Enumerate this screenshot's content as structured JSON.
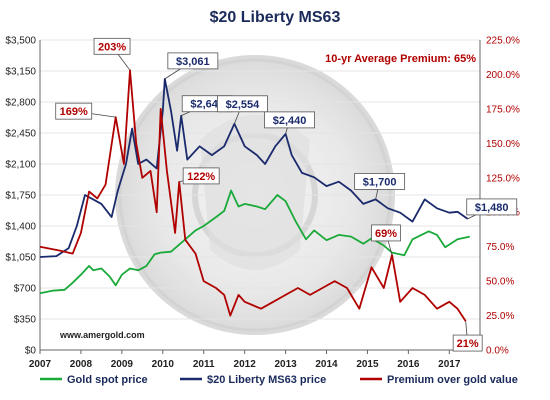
{
  "chart_data": {
    "type": "line",
    "title": "$20 Liberty MS63",
    "average_note": "10-yr Average Premium:  65%",
    "source": "www.amergold.com",
    "x_ticks": [
      "2007",
      "2008",
      "2009",
      "2010",
      "2011",
      "2012",
      "2013",
      "2014",
      "2015",
      "2016",
      "2017"
    ],
    "xlim": [
      2007,
      2017.75
    ],
    "y_left": {
      "ticks": [
        "$0",
        "$350",
        "$700",
        "$1,050",
        "$1,400",
        "$1,750",
        "$2,100",
        "$2,450",
        "$2,800",
        "$3,150",
        "$3,500"
      ],
      "ylim": [
        0,
        3500
      ]
    },
    "y_right": {
      "ticks": [
        "0.0%",
        "25.0%",
        "50.0%",
        "75.0%",
        "100.0%",
        "125.0%",
        "150.0%",
        "175.0%",
        "200.0%",
        "225.0%"
      ],
      "ylim": [
        0,
        225
      ]
    },
    "grid": "horizontal",
    "legend_placement": "bottom",
    "series": [
      {
        "name": "Gold spot price",
        "axis": "left",
        "color": "#1aaa3a",
        "points": [
          [
            2007.0,
            640
          ],
          [
            2007.3,
            670
          ],
          [
            2007.6,
            680
          ],
          [
            2007.8,
            760
          ],
          [
            2008.0,
            850
          ],
          [
            2008.2,
            950
          ],
          [
            2008.3,
            900
          ],
          [
            2008.5,
            920
          ],
          [
            2008.7,
            830
          ],
          [
            2008.85,
            730
          ],
          [
            2009.0,
            850
          ],
          [
            2009.2,
            920
          ],
          [
            2009.4,
            900
          ],
          [
            2009.6,
            950
          ],
          [
            2009.8,
            1080
          ],
          [
            2009.95,
            1100
          ],
          [
            2010.2,
            1110
          ],
          [
            2010.5,
            1230
          ],
          [
            2010.8,
            1350
          ],
          [
            2011.0,
            1400
          ],
          [
            2011.3,
            1500
          ],
          [
            2011.5,
            1570
          ],
          [
            2011.67,
            1800
          ],
          [
            2011.85,
            1620
          ],
          [
            2012.0,
            1650
          ],
          [
            2012.3,
            1620
          ],
          [
            2012.5,
            1590
          ],
          [
            2012.8,
            1750
          ],
          [
            2013.0,
            1680
          ],
          [
            2013.25,
            1450
          ],
          [
            2013.5,
            1250
          ],
          [
            2013.7,
            1350
          ],
          [
            2014.0,
            1240
          ],
          [
            2014.3,
            1300
          ],
          [
            2014.6,
            1280
          ],
          [
            2014.9,
            1200
          ],
          [
            2015.1,
            1260
          ],
          [
            2015.4,
            1180
          ],
          [
            2015.6,
            1100
          ],
          [
            2015.9,
            1070
          ],
          [
            2016.1,
            1250
          ],
          [
            2016.5,
            1340
          ],
          [
            2016.7,
            1300
          ],
          [
            2016.9,
            1160
          ],
          [
            2017.2,
            1250
          ],
          [
            2017.5,
            1280
          ]
        ]
      },
      {
        "name": "$20 Liberty MS63 price",
        "axis": "left",
        "color": "#1a2a6c",
        "points": [
          [
            2007.0,
            1050
          ],
          [
            2007.4,
            1060
          ],
          [
            2007.7,
            1150
          ],
          [
            2007.9,
            1400
          ],
          [
            2008.1,
            1750
          ],
          [
            2008.3,
            1700
          ],
          [
            2008.5,
            1650
          ],
          [
            2008.75,
            1500
          ],
          [
            2008.9,
            1800
          ],
          [
            2009.1,
            2100
          ],
          [
            2009.25,
            2500
          ],
          [
            2009.4,
            2100
          ],
          [
            2009.6,
            2150
          ],
          [
            2009.85,
            2050
          ],
          [
            2010.0,
            2700
          ],
          [
            2010.05,
            3061
          ],
          [
            2010.2,
            2700
          ],
          [
            2010.35,
            2250
          ],
          [
            2010.45,
            2645
          ],
          [
            2010.6,
            2150
          ],
          [
            2010.9,
            2300
          ],
          [
            2011.2,
            2200
          ],
          [
            2011.5,
            2300
          ],
          [
            2011.75,
            2554
          ],
          [
            2012.0,
            2300
          ],
          [
            2012.3,
            2200
          ],
          [
            2012.5,
            2100
          ],
          [
            2012.75,
            2300
          ],
          [
            2013.0,
            2440
          ],
          [
            2013.15,
            2200
          ],
          [
            2013.4,
            2000
          ],
          [
            2013.7,
            1950
          ],
          [
            2014.0,
            1850
          ],
          [
            2014.3,
            1900
          ],
          [
            2014.6,
            1800
          ],
          [
            2014.9,
            1650
          ],
          [
            2015.2,
            1700
          ],
          [
            2015.5,
            1600
          ],
          [
            2015.8,
            1550
          ],
          [
            2016.1,
            1450
          ],
          [
            2016.4,
            1700
          ],
          [
            2016.7,
            1600
          ],
          [
            2017.0,
            1550
          ],
          [
            2017.2,
            1560
          ],
          [
            2017.45,
            1480
          ]
        ]
      },
      {
        "name": "Premium over gold value",
        "axis": "right",
        "color": "#b00000",
        "points": [
          [
            2007.0,
            75
          ],
          [
            2007.5,
            72
          ],
          [
            2007.8,
            70
          ],
          [
            2008.0,
            85
          ],
          [
            2008.2,
            115
          ],
          [
            2008.4,
            110
          ],
          [
            2008.6,
            120
          ],
          [
            2008.85,
            169
          ],
          [
            2009.05,
            135
          ],
          [
            2009.2,
            203
          ],
          [
            2009.35,
            150
          ],
          [
            2009.5,
            125
          ],
          [
            2009.7,
            130
          ],
          [
            2009.85,
            100
          ],
          [
            2009.95,
            175
          ],
          [
            2010.1,
            130
          ],
          [
            2010.3,
            85
          ],
          [
            2010.4,
            122
          ],
          [
            2010.55,
            80
          ],
          [
            2010.8,
            70
          ],
          [
            2011.0,
            50
          ],
          [
            2011.3,
            45
          ],
          [
            2011.5,
            40
          ],
          [
            2011.65,
            25
          ],
          [
            2011.85,
            40
          ],
          [
            2012.0,
            35
          ],
          [
            2012.4,
            30
          ],
          [
            2012.7,
            35
          ],
          [
            2013.0,
            40
          ],
          [
            2013.3,
            45
          ],
          [
            2013.6,
            40
          ],
          [
            2013.9,
            45
          ],
          [
            2014.2,
            50
          ],
          [
            2014.5,
            45
          ],
          [
            2014.8,
            30
          ],
          [
            2015.1,
            60
          ],
          [
            2015.4,
            45
          ],
          [
            2015.6,
            69
          ],
          [
            2015.8,
            35
          ],
          [
            2016.1,
            45
          ],
          [
            2016.4,
            40
          ],
          [
            2016.7,
            30
          ],
          [
            2017.0,
            35
          ],
          [
            2017.2,
            30
          ],
          [
            2017.4,
            21
          ]
        ]
      }
    ],
    "annotations": [
      {
        "text": "203%",
        "series": 2,
        "x": 2009.2,
        "y": 203,
        "color": "#b00000"
      },
      {
        "text": "169%",
        "series": 2,
        "x": 2008.85,
        "y": 169,
        "color": "#b00000"
      },
      {
        "text": "122%",
        "series": 2,
        "x": 2010.4,
        "y": 122,
        "color": "#b00000"
      },
      {
        "text": "69%",
        "series": 2,
        "x": 2015.6,
        "y": 69,
        "color": "#b00000"
      },
      {
        "text": "21%",
        "series": 2,
        "x": 2017.4,
        "y": 21,
        "color": "#b00000"
      },
      {
        "text": "$3,061",
        "series": 1,
        "x": 2010.05,
        "y": 3061,
        "color": "#1a2a6c"
      },
      {
        "text": "$2,645",
        "series": 1,
        "x": 2010.45,
        "y": 2645,
        "color": "#1a2a6c"
      },
      {
        "text": "$2,554",
        "series": 1,
        "x": 2011.75,
        "y": 2554,
        "color": "#1a2a6c"
      },
      {
        "text": "$2,440",
        "series": 1,
        "x": 2013.0,
        "y": 2440,
        "color": "#1a2a6c"
      },
      {
        "text": "$1,700",
        "series": 1,
        "x": 2015.2,
        "y": 1700,
        "color": "#1a2a6c"
      },
      {
        "text": "$1,480",
        "series": 1,
        "x": 2017.45,
        "y": 1480,
        "color": "#1a2a6c"
      }
    ]
  }
}
